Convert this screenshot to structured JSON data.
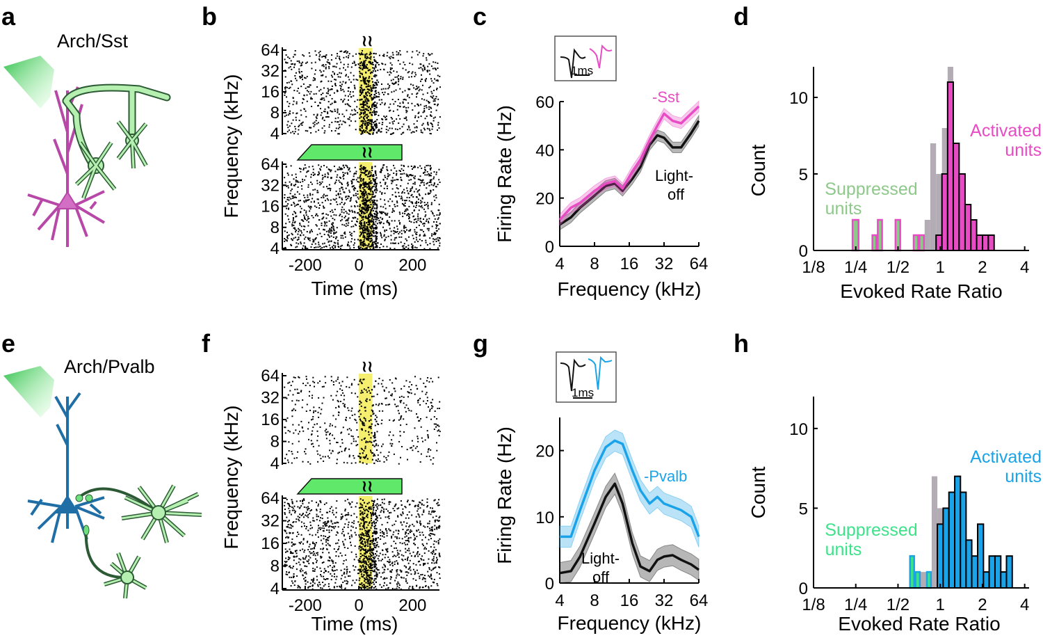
{
  "panel_labels": {
    "a": "a",
    "b": "b",
    "c": "c",
    "d": "d",
    "e": "e",
    "f": "f",
    "g": "g",
    "h": "h"
  },
  "schematics": {
    "top_title": "Arch/Sst",
    "bottom_title": "Arch/Pvalb",
    "colors": {
      "sst": "#b848a8",
      "pvalb": "#1f6fa6",
      "arch_fill": "#b5f0b0",
      "arch_stroke": "#2c5a35",
      "light": "#62e07a"
    }
  },
  "raster": {
    "ylabel": "Frequency (kHz)",
    "xlabel": "Time (ms)",
    "yticks": [
      "64",
      "32",
      "16",
      "8",
      "4"
    ],
    "xticks": [
      "-200",
      "0",
      "200"
    ],
    "stim_window_color": "#f5ee6e",
    "light_bar_color": "#5fe86a",
    "stim_glyph": "≀≀"
  },
  "waveform_scale": {
    "label": "1ms"
  },
  "chart_data": [
    {
      "panel": "c",
      "type": "line",
      "x": [
        4,
        5,
        6,
        8,
        10,
        12,
        14,
        17,
        20,
        24,
        28,
        32,
        38,
        45,
        55,
        64
      ],
      "xticks": [
        "4",
        "8",
        "16",
        "32",
        "64"
      ],
      "ylim": [
        0,
        60
      ],
      "yticks": [
        "0",
        "20",
        "40",
        "60"
      ],
      "xlabel": "Frequency (kHz)",
      "ylabel": "Firing Rate (Hz)",
      "series": [
        {
          "name": "Light-off",
          "color": "#111111",
          "values": [
            9,
            12,
            16,
            21,
            25,
            26,
            23,
            28,
            33,
            42,
            46,
            45,
            41,
            41,
            47,
            52
          ]
        },
        {
          "name": "-Sst",
          "color": "#e84cc4",
          "values": [
            11,
            16,
            18,
            23,
            26,
            27,
            24,
            31,
            36,
            44,
            50,
            55,
            52,
            51,
            55,
            58
          ]
        }
      ]
    },
    {
      "panel": "d",
      "type": "bar",
      "xlabel": "Evoked Rate Ratio",
      "ylabel": "Count",
      "xticks": [
        "1/8",
        "1/4",
        "1/2",
        "1",
        "2",
        "4"
      ],
      "ylim": [
        0,
        12
      ],
      "yticks": [
        "0",
        "5",
        "10"
      ],
      "annotations": [
        {
          "text_lines": [
            "Suppressed",
            "units"
          ],
          "color": "#8ec88a"
        },
        {
          "text_lines": [
            "Activated",
            "units"
          ],
          "color": "#e84cc4"
        }
      ],
      "bin_centers": [
        0.19,
        0.22,
        0.25,
        0.28,
        0.31,
        0.34,
        0.37,
        0.41,
        0.45,
        0.5,
        0.55,
        0.61,
        0.67,
        0.74,
        0.81,
        0.89,
        0.98,
        1.08,
        1.18,
        1.3,
        1.43,
        1.58,
        1.73,
        1.91,
        2.1,
        2.31,
        2.54
      ],
      "series": [
        {
          "name": "Suppressed",
          "values": [
            0,
            0,
            2,
            0,
            0,
            1,
            2,
            0,
            0,
            2,
            0,
            0,
            1,
            1,
            0,
            0,
            0,
            0,
            0,
            0,
            0,
            0,
            0,
            0,
            0,
            0,
            0
          ]
        },
        {
          "name": "Activated",
          "values": [
            0,
            0,
            0,
            0,
            0,
            0,
            0,
            0,
            0,
            0,
            0,
            0,
            0,
            0,
            0,
            0,
            1,
            5,
            11,
            7,
            5,
            3,
            2,
            1,
            1,
            1,
            0
          ]
        },
        {
          "name": "Total",
          "values": [
            0,
            0,
            2,
            0,
            0,
            1,
            2,
            0,
            0,
            2,
            0,
            0,
            1,
            1,
            2,
            7,
            5,
            8,
            12,
            7,
            5,
            3,
            2,
            1,
            1,
            1,
            0
          ]
        }
      ]
    },
    {
      "panel": "g",
      "type": "line",
      "x": [
        4,
        5,
        6,
        8,
        10,
        12,
        14,
        17,
        20,
        24,
        28,
        32,
        38,
        45,
        55,
        64
      ],
      "xticks": [
        "4",
        "8",
        "16",
        "32",
        "64"
      ],
      "ylim": [
        0,
        25
      ],
      "yticks": [
        "0",
        "10",
        "20"
      ],
      "xlabel": "Frequency (kHz)",
      "ylabel": "Firing Rate (Hz)",
      "series": [
        {
          "name": "Light-off",
          "color": "#111111",
          "values": [
            1.5,
            1.8,
            4,
            9,
            13,
            15,
            12,
            6,
            2.5,
            1.8,
            3.5,
            4,
            4.2,
            3.5,
            2.8,
            2
          ]
        },
        {
          "name": "-Pvalb",
          "color": "#1aa3e8",
          "values": [
            7,
            7,
            11,
            17,
            20.5,
            21.5,
            21,
            17,
            14,
            12,
            13,
            12,
            11.5,
            11,
            10,
            7
          ]
        }
      ]
    },
    {
      "panel": "h",
      "type": "bar",
      "xlabel": "Evoked Rate Ratio",
      "ylabel": "Count",
      "xticks": [
        "1/8",
        "1/4",
        "1/2",
        "1",
        "2",
        "4"
      ],
      "ylim": [
        0,
        12
      ],
      "yticks": [
        "0",
        "5",
        "10"
      ],
      "annotations": [
        {
          "text_lines": [
            "Suppressed",
            "units"
          ],
          "color": "#3de28a"
        },
        {
          "text_lines": [
            "Activated",
            "units"
          ],
          "color": "#1aa3e8"
        }
      ],
      "bin_centers": [
        0.63,
        0.69,
        0.76,
        0.83,
        0.91,
        1.0,
        1.1,
        1.21,
        1.33,
        1.46,
        1.6,
        1.76,
        1.94,
        2.13,
        2.34,
        2.58,
        2.83,
        3.11,
        3.42
      ],
      "series": [
        {
          "name": "Suppressed",
          "values": [
            2,
            1,
            0,
            1,
            0,
            0,
            0,
            0,
            0,
            0,
            0,
            0,
            0,
            0,
            0,
            0,
            0,
            0,
            0
          ]
        },
        {
          "name": "Activated",
          "values": [
            0,
            0,
            0,
            0,
            0,
            4,
            5,
            6,
            7,
            6,
            3,
            2,
            4,
            1,
            2,
            2,
            1,
            2,
            0
          ]
        },
        {
          "name": "Total",
          "values": [
            2,
            1,
            1,
            1,
            7,
            5,
            5,
            6,
            7,
            6,
            3,
            2,
            4,
            1,
            2,
            2,
            1,
            2,
            0
          ]
        }
      ]
    }
  ]
}
